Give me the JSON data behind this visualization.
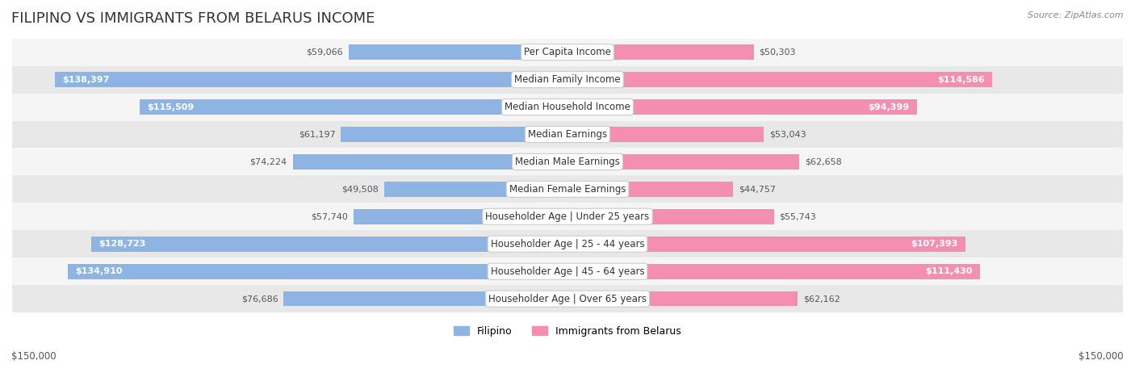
{
  "title": "FILIPINO VS IMMIGRANTS FROM BELARUS INCOME",
  "source": "Source: ZipAtlas.com",
  "categories": [
    "Per Capita Income",
    "Median Family Income",
    "Median Household Income",
    "Median Earnings",
    "Median Male Earnings",
    "Median Female Earnings",
    "Householder Age | Under 25 years",
    "Householder Age | 25 - 44 years",
    "Householder Age | 45 - 64 years",
    "Householder Age | Over 65 years"
  ],
  "filipino_values": [
    59066,
    138397,
    115509,
    61197,
    74224,
    49508,
    57740,
    128723,
    134910,
    76686
  ],
  "belarus_values": [
    50303,
    114586,
    94399,
    53043,
    62658,
    44757,
    55743,
    107393,
    111430,
    62162
  ],
  "filipino_labels": [
    "$59,066",
    "$138,397",
    "$115,509",
    "$61,197",
    "$74,224",
    "$49,508",
    "$57,740",
    "$128,723",
    "$134,910",
    "$76,686"
  ],
  "belarus_labels": [
    "$50,303",
    "$114,586",
    "$94,399",
    "$53,043",
    "$62,658",
    "$44,757",
    "$55,743",
    "$107,393",
    "$111,430",
    "$62,162"
  ],
  "filipino_color": "#8eb4e3",
  "belarus_color": "#f48fb1",
  "filipino_color_dark": "#5b9bd5",
  "belarus_color_dark": "#e9547a",
  "max_value": 150000,
  "bar_height": 0.55,
  "row_bg_light": "#f5f5f5",
  "row_bg_dark": "#e8e8e8",
  "legend_filipino": "Filipino",
  "legend_belarus": "Immigrants from Belarus",
  "xlabel_left": "$150,000",
  "xlabel_right": "$150,000",
  "title_fontsize": 13,
  "label_fontsize": 8.5,
  "category_fontsize": 8.5,
  "value_fontsize": 8
}
